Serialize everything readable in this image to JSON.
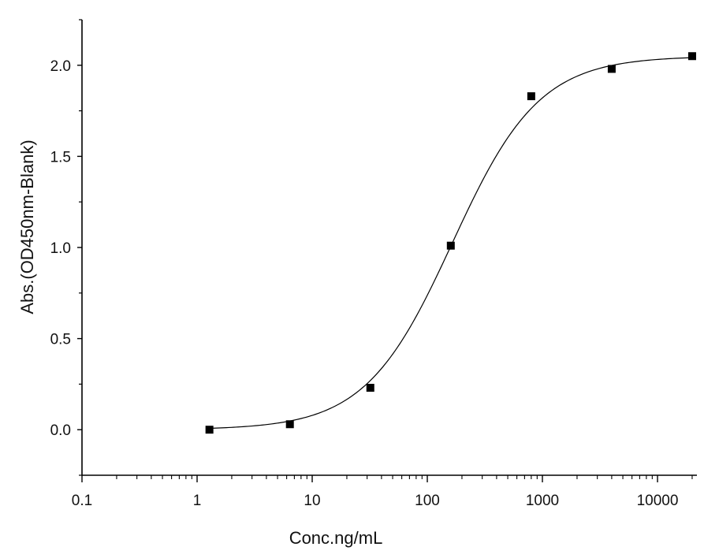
{
  "chart_data": {
    "type": "scatter",
    "title": "",
    "xlabel": "Conc.ng/mL",
    "ylabel": "Abs.(OD450nm-Blank)",
    "xscale": "log",
    "xlim": [
      0.1,
      22000
    ],
    "ylim": [
      -0.25,
      2.25
    ],
    "grid": false,
    "x_ticks": [
      {
        "value": 0.1,
        "label": "0.1"
      },
      {
        "value": 1,
        "label": "1"
      },
      {
        "value": 10,
        "label": "10"
      },
      {
        "value": 100,
        "label": "100"
      },
      {
        "value": 1000,
        "label": "1000"
      },
      {
        "value": 10000,
        "label": "10000"
      }
    ],
    "y_ticks": [
      {
        "value": 0.0,
        "label": "0.0"
      },
      {
        "value": 0.5,
        "label": "0.5"
      },
      {
        "value": 1.0,
        "label": "1.0"
      },
      {
        "value": 1.5,
        "label": "1.5"
      },
      {
        "value": 2.0,
        "label": "2.0"
      }
    ],
    "series": [
      {
        "marker": "square",
        "color": "#000000",
        "x": [
          1.28,
          6.4,
          32,
          160,
          800,
          4000,
          20000
        ],
        "y": [
          0.0,
          0.03,
          0.23,
          1.01,
          1.83,
          1.98,
          2.05
        ]
      }
    ],
    "fit_curve": {
      "kind": "4PL",
      "color": "#000000",
      "bottom": 0.0,
      "top": 2.05,
      "ec50": 165,
      "hill": 1.15
    }
  }
}
